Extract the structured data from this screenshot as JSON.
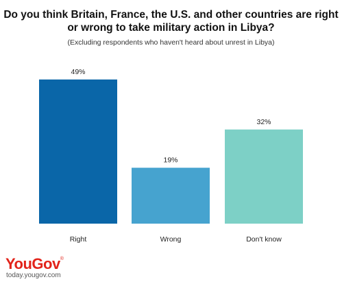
{
  "chart_data": {
    "type": "bar",
    "title": "Do you think Britain, France, the U.S. and other countries are right or wrong to take military action in Libya?",
    "title_lines": [
      "Do you think Britain, France, the U.S. and other countries are right",
      "or wrong to take military action in Libya?"
    ],
    "subtitle": "(Excluding respondents who haven't heard about unrest in Libya)",
    "categories": [
      "Right",
      "Wrong",
      "Don't know"
    ],
    "values": [
      49,
      19,
      32
    ],
    "value_labels": [
      "49%",
      "19%",
      "32%"
    ],
    "colors": [
      "#0a66a8",
      "#46a3cf",
      "#7dd0c6"
    ],
    "xlabel": "",
    "ylabel": "",
    "ylim": [
      0,
      52
    ],
    "grid": false,
    "legend": "none"
  },
  "footer": {
    "logo": "YouGov",
    "logo_mark": "®",
    "url": "today.yougov.com"
  }
}
